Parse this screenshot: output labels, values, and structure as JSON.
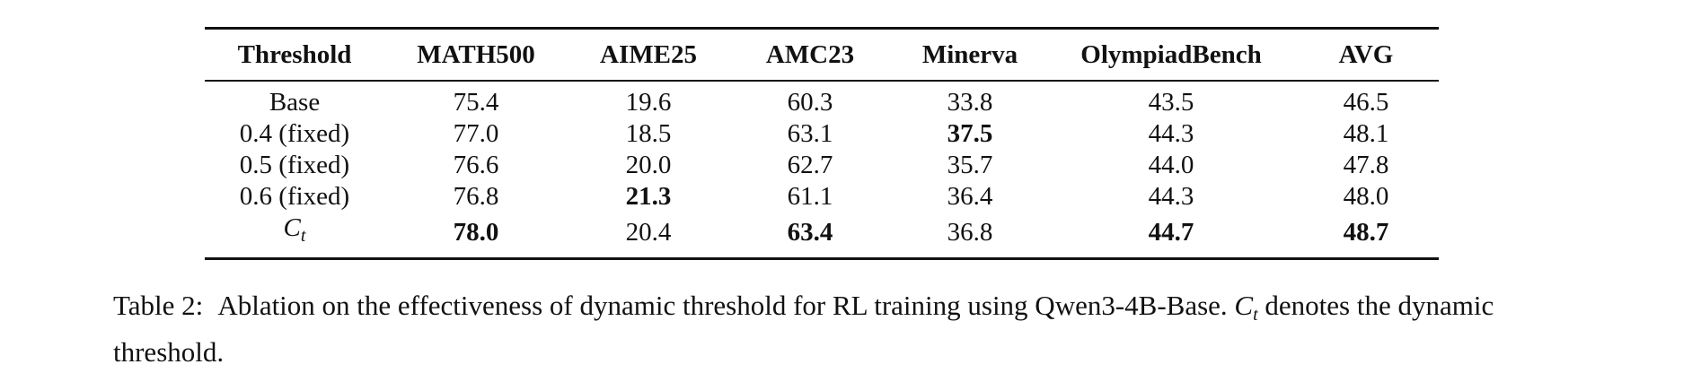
{
  "table": {
    "headers": [
      "Threshold",
      "MATH500",
      "AIME25",
      "AMC23",
      "Minerva",
      "OlympiadBench",
      "AVG"
    ],
    "rows": [
      {
        "threshold": "Base",
        "cells": [
          {
            "value": "75.4",
            "bold": false
          },
          {
            "value": "19.6",
            "bold": false
          },
          {
            "value": "60.3",
            "bold": false
          },
          {
            "value": "33.8",
            "bold": false
          },
          {
            "value": "43.5",
            "bold": false
          },
          {
            "value": "46.5",
            "bold": false
          }
        ]
      },
      {
        "threshold": "0.4 (fixed)",
        "cells": [
          {
            "value": "77.0",
            "bold": false
          },
          {
            "value": "18.5",
            "bold": false
          },
          {
            "value": "63.1",
            "bold": false
          },
          {
            "value": "37.5",
            "bold": true
          },
          {
            "value": "44.3",
            "bold": false
          },
          {
            "value": "48.1",
            "bold": false
          }
        ]
      },
      {
        "threshold": "0.5 (fixed)",
        "cells": [
          {
            "value": "76.6",
            "bold": false
          },
          {
            "value": "20.0",
            "bold": false
          },
          {
            "value": "62.7",
            "bold": false
          },
          {
            "value": "35.7",
            "bold": false
          },
          {
            "value": "44.0",
            "bold": false
          },
          {
            "value": "47.8",
            "bold": false
          }
        ]
      },
      {
        "threshold": "0.6 (fixed)",
        "cells": [
          {
            "value": "76.8",
            "bold": false
          },
          {
            "value": "21.3",
            "bold": true
          },
          {
            "value": "61.1",
            "bold": false
          },
          {
            "value": "36.4",
            "bold": false
          },
          {
            "value": "44.3",
            "bold": false
          },
          {
            "value": "48.0",
            "bold": false
          }
        ]
      },
      {
        "threshold_math": {
          "base": "C",
          "sub": "t"
        },
        "cells": [
          {
            "value": "78.0",
            "bold": true
          },
          {
            "value": "20.4",
            "bold": false
          },
          {
            "value": "63.4",
            "bold": true
          },
          {
            "value": "36.8",
            "bold": false
          },
          {
            "value": "44.7",
            "bold": true
          },
          {
            "value": "48.7",
            "bold": true
          }
        ]
      }
    ]
  },
  "caption": {
    "label": "Table 2:",
    "text_before": "Ablation on the effectiveness of dynamic threshold for RL training using Qwen3-4B-Base.",
    "math_base": "C",
    "math_sub": "t",
    "text_after": "denotes the dynamic threshold."
  }
}
